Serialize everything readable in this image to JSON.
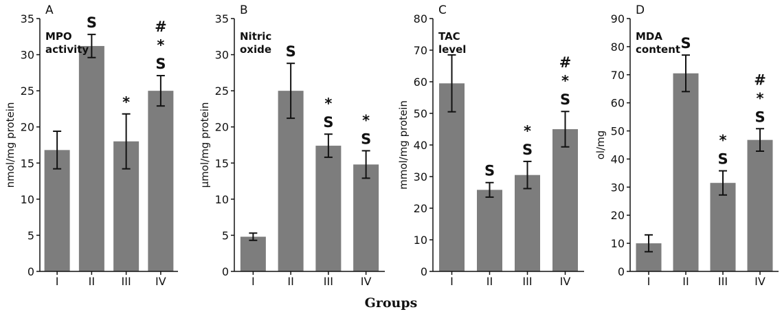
{
  "xlabel": "Groups",
  "chart_data": [
    {
      "type": "bar",
      "panel": "A",
      "title_lines": [
        "MPO",
        "activity"
      ],
      "ylabel": "nmol/mg protein",
      "ylim": [
        0,
        35
      ],
      "yticks": [
        "0",
        "5",
        "10",
        "15",
        "20",
        "25",
        "30",
        "35"
      ],
      "categories": [
        "I",
        "II",
        "III",
        "IV"
      ],
      "values": [
        16.8,
        31.2,
        18.0,
        25.0
      ],
      "errors": [
        2.6,
        1.6,
        3.8,
        2.1
      ],
      "annotations": [
        [],
        [
          "S"
        ],
        [
          "*"
        ],
        [
          "S",
          "*",
          "#"
        ]
      ]
    },
    {
      "type": "bar",
      "panel": "B",
      "title_lines": [
        "Nitric",
        "oxide"
      ],
      "ylabel": "μmol/mg protein",
      "ylim": [
        0,
        35
      ],
      "yticks": [
        "0",
        "5",
        "10",
        "15",
        "20",
        "25",
        "30",
        "35"
      ],
      "categories": [
        "I",
        "II",
        "III",
        "IV"
      ],
      "values": [
        4.8,
        25.0,
        17.4,
        14.8
      ],
      "errors": [
        0.5,
        3.8,
        1.6,
        1.9
      ],
      "annotations": [
        [],
        [
          "S"
        ],
        [
          "S",
          "*"
        ],
        [
          "S",
          "*"
        ]
      ]
    },
    {
      "type": "bar",
      "panel": "C",
      "title_lines": [
        "TAC",
        "level"
      ],
      "ylabel": "mmol/mg protein",
      "ylim": [
        0,
        80
      ],
      "yticks": [
        "0",
        "10",
        "20",
        "30",
        "40",
        "50",
        "60",
        "70",
        "80"
      ],
      "categories": [
        "I",
        "II",
        "III",
        "IV"
      ],
      "values": [
        59.5,
        25.8,
        30.5,
        45.0
      ],
      "errors": [
        9.0,
        2.3,
        4.3,
        5.6
      ],
      "annotations": [
        [],
        [
          "S"
        ],
        [
          "S",
          "*"
        ],
        [
          "S",
          "*",
          "#"
        ]
      ]
    },
    {
      "type": "bar",
      "panel": "D",
      "title_lines": [
        "MDA",
        "content"
      ],
      "ylabel": "ol/mg",
      "ylim": [
        0,
        90
      ],
      "yticks": [
        "0",
        "10",
        "20",
        "30",
        "40",
        "50",
        "60",
        "70",
        "80",
        "90"
      ],
      "categories": [
        "I",
        "II",
        "III",
        "IV"
      ],
      "values": [
        10.0,
        70.5,
        31.5,
        46.8
      ],
      "errors": [
        3.0,
        6.5,
        4.3,
        4.0
      ],
      "annotations": [
        [],
        [
          "S"
        ],
        [
          "S",
          "*"
        ],
        [
          "S",
          "*",
          "#"
        ]
      ]
    }
  ],
  "colors": {
    "bar": "#7d7d7d",
    "axis": "#111111",
    "error": "#111111"
  }
}
